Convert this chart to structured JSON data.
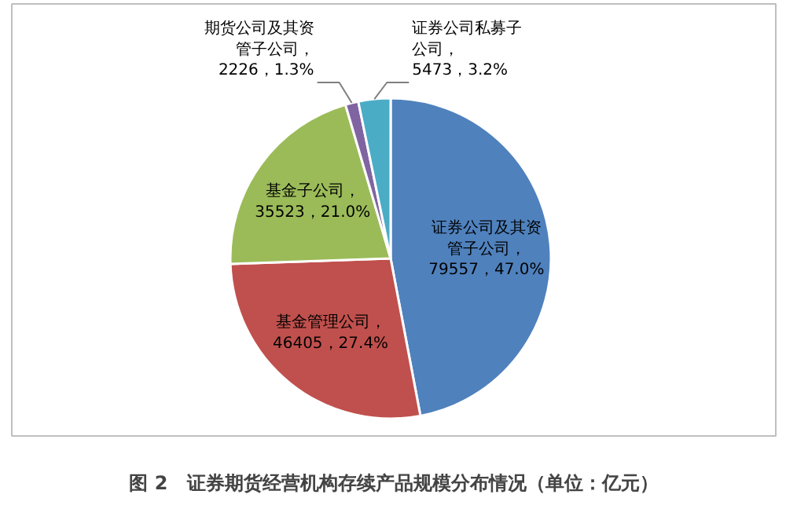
{
  "chart_data": {
    "type": "pie",
    "title": "图 2　证券期货经营机构存续产品规模分布情况（单位：亿元）",
    "categories": [
      "证券公司及其资管子公司",
      "基金管理公司",
      "基金子公司",
      "期货公司及其资管子公司",
      "证券公司私募子公司"
    ],
    "values": [
      79557,
      46405,
      35523,
      2226,
      5473
    ],
    "value_labels": [
      "，79557，47.0%",
      "，46405，27.4%",
      "，35523，21.0%",
      "，2226，1.3%",
      "，5473，3.2%"
    ],
    "colors": [
      "#4f81bd",
      "#c0504d",
      "#9bbb59",
      "#8064a2",
      "#4bacc6"
    ]
  }
}
